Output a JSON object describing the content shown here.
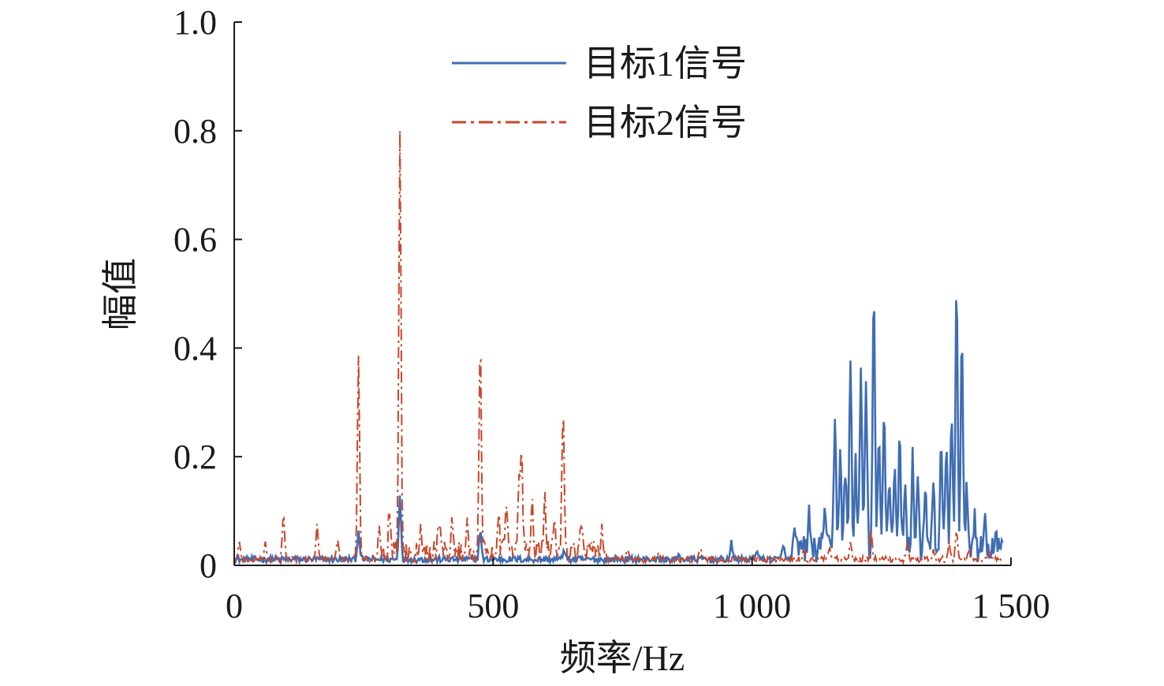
{
  "chart_data": {
    "type": "line",
    "title": "",
    "xlabel": "频率/Hz",
    "ylabel": "幅值",
    "xlim": [
      0,
      1500
    ],
    "ylim": [
      0,
      1.0
    ],
    "x_ticks": [
      0,
      500,
      1000,
      1500
    ],
    "x_tick_labels": [
      "0",
      "500",
      "1 000",
      "1 500"
    ],
    "y_ticks": [
      0,
      0.2,
      0.4,
      0.6,
      0.8,
      1.0
    ],
    "y_tick_labels": [
      "0",
      "0.2",
      "0.4",
      "0.6",
      "0.8",
      "1.0"
    ],
    "grid": false,
    "legend_position": "top-center",
    "series": [
      {
        "name": "目标1信号",
        "color": "#3f6db4",
        "line_style": "solid",
        "baseline": 0.005,
        "peaks": [
          [
            240,
            0.055
          ],
          [
            320,
            0.12
          ],
          [
            475,
            0.055
          ],
          [
            637,
            0.02
          ],
          [
            860,
            0.008
          ],
          [
            960,
            0.03
          ],
          [
            1010,
            0.02
          ],
          [
            1060,
            0.03
          ],
          [
            1080,
            0.04
          ],
          [
            1110,
            0.06
          ],
          [
            1140,
            0.09
          ],
          [
            1160,
            0.255
          ],
          [
            1170,
            0.18
          ],
          [
            1180,
            0.15
          ],
          [
            1190,
            0.355
          ],
          [
            1200,
            0.16
          ],
          [
            1210,
            0.335
          ],
          [
            1220,
            0.31
          ],
          [
            1235,
            0.48
          ],
          [
            1245,
            0.2
          ],
          [
            1255,
            0.27
          ],
          [
            1265,
            0.14
          ],
          [
            1275,
            0.16
          ],
          [
            1285,
            0.2
          ],
          [
            1295,
            0.12
          ],
          [
            1310,
            0.17
          ],
          [
            1320,
            0.14
          ],
          [
            1335,
            0.1
          ],
          [
            1350,
            0.11
          ],
          [
            1365,
            0.18
          ],
          [
            1375,
            0.2
          ],
          [
            1385,
            0.25
          ],
          [
            1395,
            0.49
          ],
          [
            1405,
            0.39
          ],
          [
            1415,
            0.11
          ],
          [
            1430,
            0.07
          ],
          [
            1450,
            0.06
          ],
          [
            1470,
            0.04
          ],
          [
            1485,
            0.025
          ]
        ]
      },
      {
        "name": "目标2信号",
        "color": "#c8472a",
        "line_style": "dash-dot",
        "baseline": 0.005,
        "peaks": [
          [
            10,
            0.03
          ],
          [
            60,
            0.03
          ],
          [
            95,
            0.085
          ],
          [
            160,
            0.06
          ],
          [
            200,
            0.04
          ],
          [
            240,
            0.37
          ],
          [
            280,
            0.06
          ],
          [
            300,
            0.08
          ],
          [
            320,
            0.77
          ],
          [
            360,
            0.06
          ],
          [
            395,
            0.07
          ],
          [
            420,
            0.06
          ],
          [
            450,
            0.05
          ],
          [
            475,
            0.39
          ],
          [
            510,
            0.08
          ],
          [
            525,
            0.1
          ],
          [
            550,
            0.12
          ],
          [
            555,
            0.18
          ],
          [
            575,
            0.1
          ],
          [
            600,
            0.09
          ],
          [
            618,
            0.07
          ],
          [
            635,
            0.27
          ],
          [
            670,
            0.05
          ],
          [
            710,
            0.04
          ],
          [
            760,
            0.02
          ],
          [
            820,
            0.015
          ],
          [
            900,
            0.02
          ],
          [
            1000,
            0.01
          ],
          [
            1100,
            0.015
          ],
          [
            1150,
            0.02
          ],
          [
            1190,
            0.03
          ],
          [
            1230,
            0.05
          ],
          [
            1300,
            0.03
          ],
          [
            1350,
            0.02
          ],
          [
            1380,
            0.03
          ],
          [
            1395,
            0.055
          ],
          [
            1420,
            0.02
          ],
          [
            1460,
            0.015
          ]
        ]
      }
    ]
  }
}
